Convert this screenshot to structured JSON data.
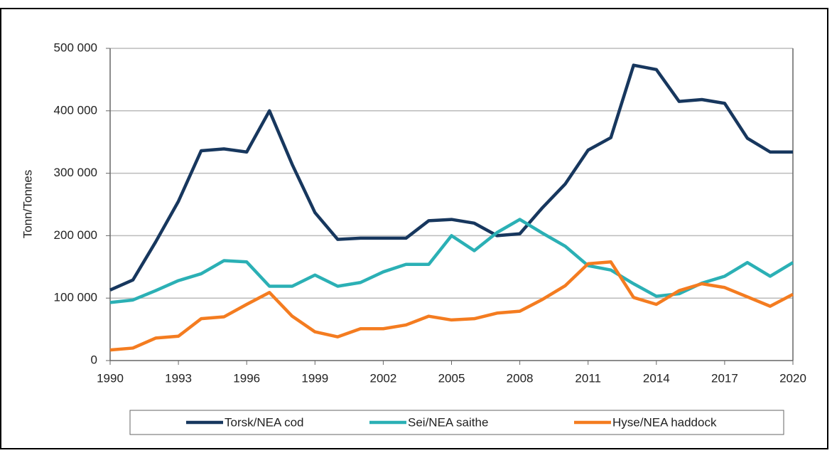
{
  "chart_data": {
    "type": "line",
    "y_label": "Tonn/Tonnes",
    "x": [
      1990,
      1991,
      1992,
      1993,
      1994,
      1995,
      1996,
      1997,
      1998,
      1999,
      2000,
      2001,
      2002,
      2003,
      2004,
      2005,
      2006,
      2007,
      2008,
      2009,
      2010,
      2011,
      2012,
      2013,
      2014,
      2015,
      2016,
      2017,
      2018,
      2019,
      2020
    ],
    "series": [
      {
        "name": "Torsk/NEA cod",
        "color": "#17375e",
        "values": [
          113000,
          129000,
          190000,
          255000,
          336000,
          339000,
          334000,
          400000,
          314000,
          237000,
          194000,
          196000,
          196000,
          196000,
          224000,
          226000,
          220000,
          200000,
          203000,
          245000,
          283000,
          337000,
          357000,
          473000,
          466000,
          415000,
          418000,
          412000,
          356000,
          334000,
          334000
        ]
      },
      {
        "name": "Sei/NEA saithe",
        "color": "#2bb0b5",
        "values": [
          93000,
          97000,
          112000,
          128000,
          139000,
          160000,
          158000,
          119000,
          119000,
          137000,
          119000,
          125000,
          142000,
          154000,
          154000,
          200000,
          176000,
          205000,
          226000,
          204000,
          183000,
          152000,
          145000,
          123000,
          103000,
          107000,
          124000,
          135000,
          157000,
          135000,
          157000
        ]
      },
      {
        "name": "Hyse/NEA haddock",
        "color": "#f47c20",
        "values": [
          17000,
          20000,
          36000,
          39000,
          67000,
          70000,
          90000,
          109000,
          71000,
          46000,
          38000,
          51000,
          51000,
          57000,
          71000,
          65000,
          67000,
          76000,
          79000,
          98000,
          120000,
          155000,
          158000,
          101000,
          90000,
          112000,
          123000,
          117000,
          102000,
          87000,
          106000
        ]
      }
    ],
    "xlim": [
      1990,
      2020
    ],
    "xticks": [
      1990,
      1993,
      1996,
      1999,
      2002,
      2005,
      2008,
      2011,
      2014,
      2017,
      2020
    ],
    "ylim": [
      0,
      500000
    ],
    "yticks": [
      0,
      {
        "value": 100000,
        "label": "100 000"
      },
      {
        "value": 200000,
        "label": "200 000"
      },
      {
        "value": 300000,
        "label": "300 000"
      },
      {
        "value": 400000,
        "label": "400 000"
      },
      {
        "value": 500000,
        "label": "500 000"
      }
    ],
    "grid": true,
    "legend": "bottom"
  }
}
